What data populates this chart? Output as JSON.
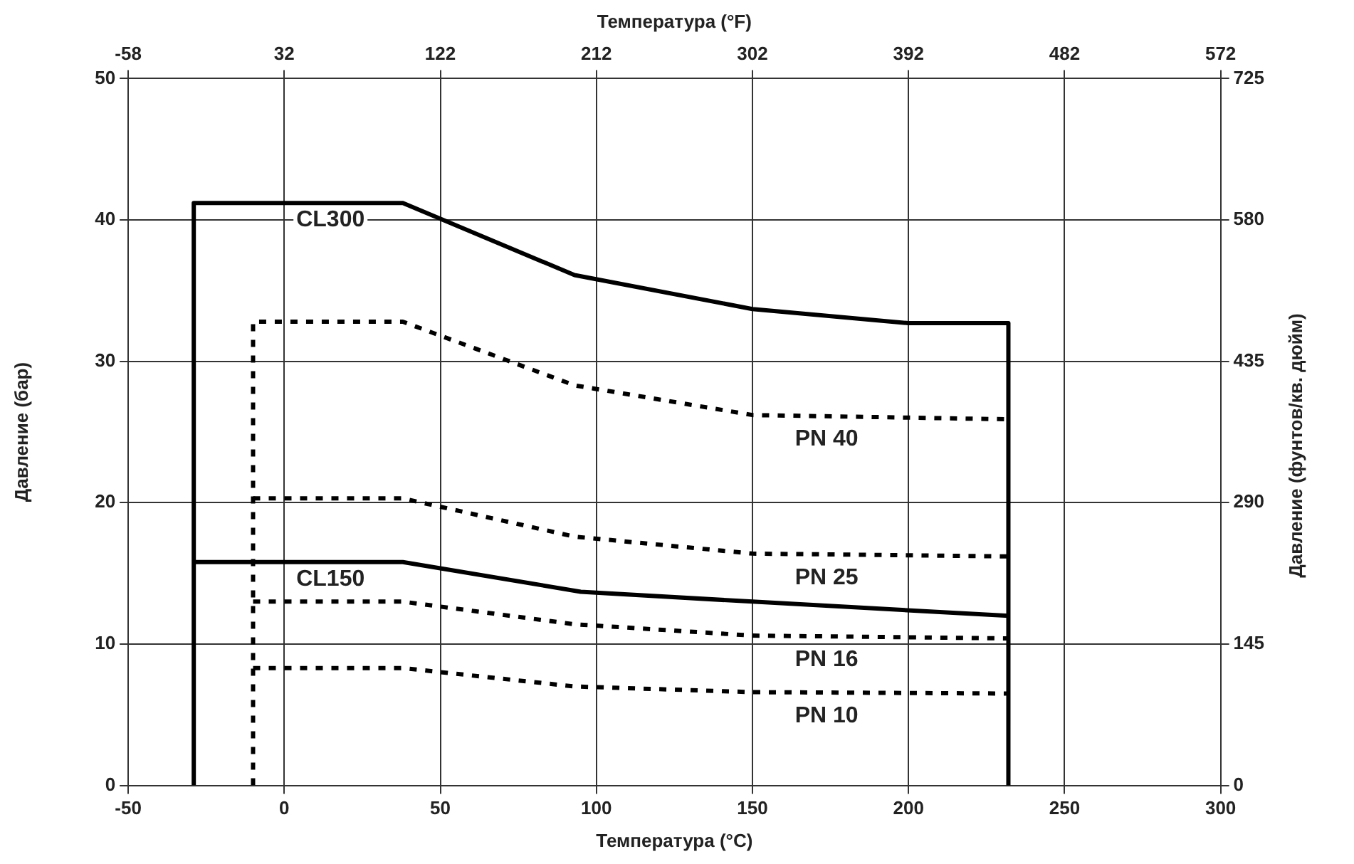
{
  "chart_data": {
    "type": "line",
    "xlabel": "Температура (°C)",
    "x2label": "Температура (°F)",
    "ylabel": "Давление (бар)",
    "y2label": "Давление (фунтов/кв. дюйм)",
    "xlim": [
      -50,
      300
    ],
    "xticks": [
      -50,
      0,
      50,
      100,
      150,
      200,
      250,
      300
    ],
    "x2lim": [
      -58,
      572
    ],
    "x2ticks": [
      -58,
      32,
      122,
      212,
      302,
      392,
      482,
      572
    ],
    "ylim": [
      0,
      50
    ],
    "yticks": [
      0,
      10,
      20,
      30,
      40,
      50
    ],
    "y2lim": [
      0,
      725
    ],
    "y2ticks": [
      0,
      145,
      290,
      435,
      580,
      725
    ],
    "grid": true,
    "legend": false,
    "marker": "none",
    "series": [
      {
        "name": "CL300",
        "color": "#000000",
        "line_style": "solid",
        "x": [
          -29,
          -29,
          38,
          93,
          150,
          200,
          232,
          232
        ],
        "values": [
          0,
          41.2,
          41.2,
          36.1,
          33.7,
          32.7,
          32.7,
          0
        ]
      },
      {
        "name": "PN 40",
        "color": "#000000",
        "line_style": "dashed",
        "x": [
          -10,
          -10,
          38,
          93,
          150,
          232
        ],
        "values": [
          0,
          32.8,
          32.8,
          28.3,
          26.2,
          25.9
        ]
      },
      {
        "name": "PN 25",
        "color": "#000000",
        "line_style": "dashed",
        "x": [
          -10,
          38,
          93,
          150,
          232
        ],
        "values": [
          20.3,
          20.3,
          17.6,
          16.4,
          16.2
        ]
      },
      {
        "name": "CL150",
        "color": "#000000",
        "line_style": "solid",
        "x": [
          -29,
          38,
          95,
          150,
          232
        ],
        "values": [
          15.8,
          15.8,
          13.7,
          13.0,
          12.0
        ]
      },
      {
        "name": "PN 16",
        "color": "#000000",
        "line_style": "dashed",
        "x": [
          -10,
          38,
          93,
          150,
          232
        ],
        "values": [
          13.0,
          13.0,
          11.4,
          10.6,
          10.4
        ]
      },
      {
        "name": "PN 10",
        "color": "#000000",
        "line_style": "dashed",
        "x": [
          -10,
          38,
          93,
          150,
          232
        ],
        "values": [
          8.3,
          8.3,
          7.0,
          6.6,
          6.5
        ]
      }
    ]
  }
}
